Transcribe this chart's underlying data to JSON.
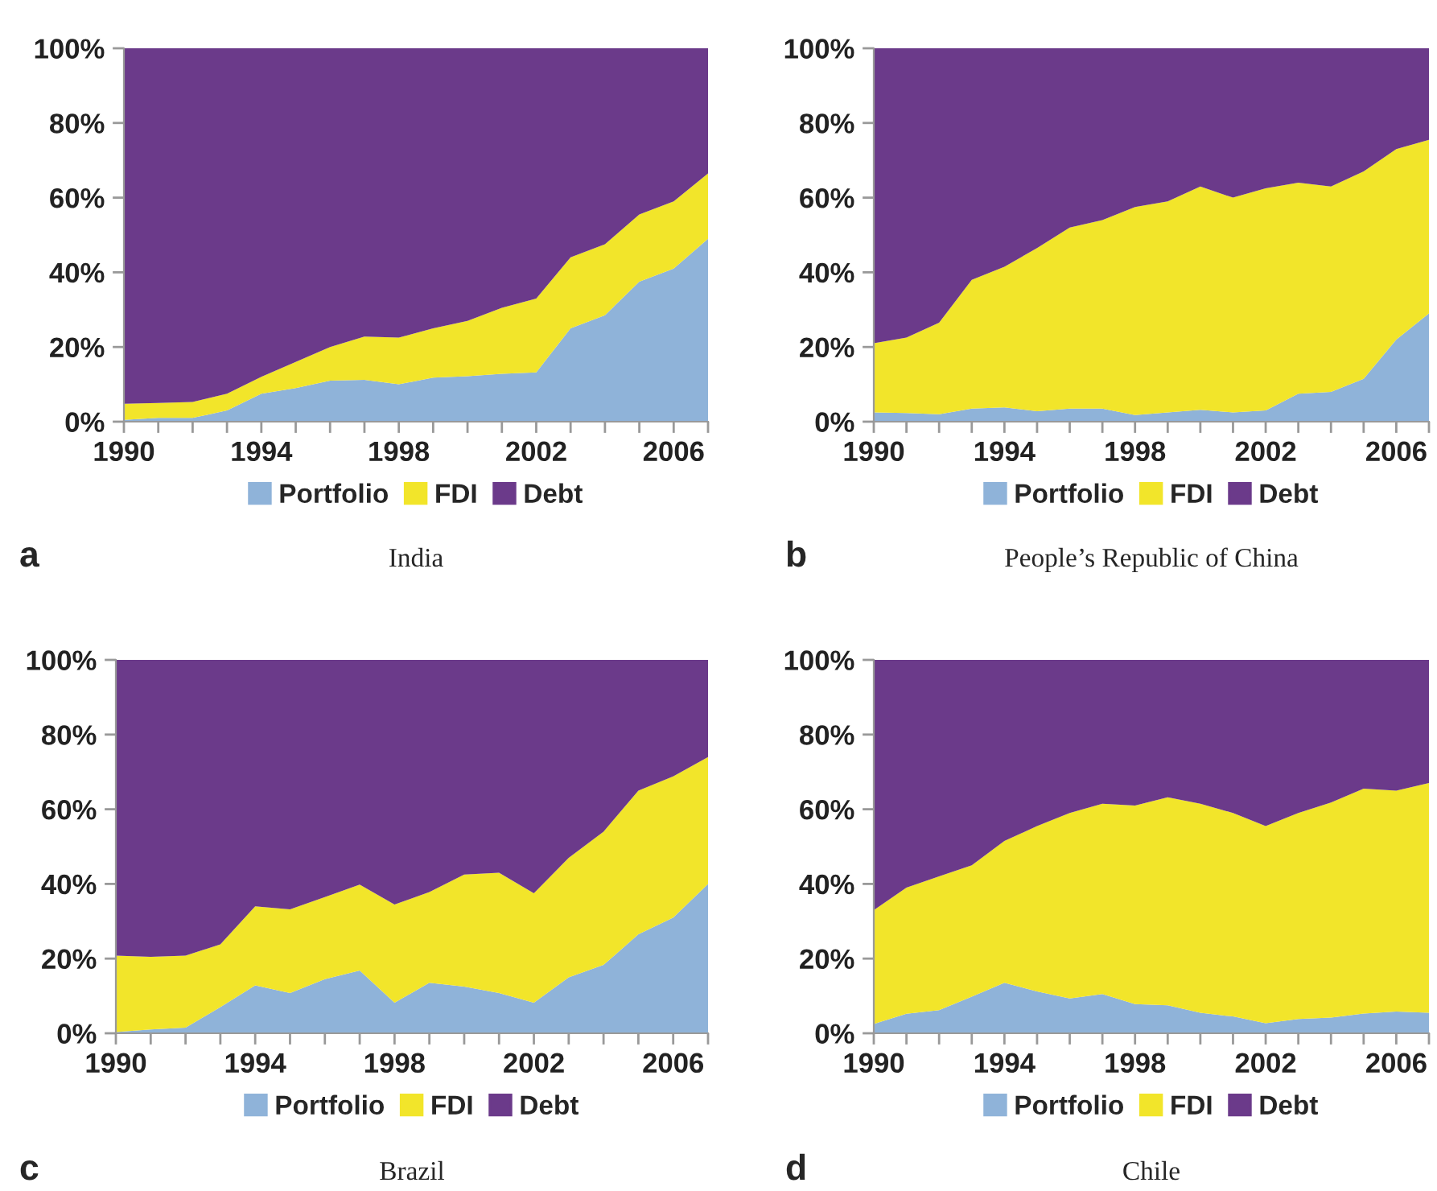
{
  "chart_data": [
    {
      "type": "area",
      "stacked": true,
      "title": "India",
      "annotations": [
        "a"
      ],
      "x": [
        1990,
        1991,
        1992,
        1993,
        1994,
        1995,
        1996,
        1997,
        1998,
        1999,
        2000,
        2001,
        2002,
        2003,
        2004,
        2005,
        2006,
        2007
      ],
      "xlim": [
        1990,
        2007
      ],
      "xticks": [
        1990,
        {
          "value": 1991,
          "label": null
        },
        {
          "value": 1992,
          "label": null
        },
        {
          "value": 1993,
          "label": null
        },
        1994,
        {
          "value": 1995,
          "label": null
        },
        {
          "value": 1996,
          "label": null
        },
        {
          "value": 1997,
          "label": null
        },
        1998,
        {
          "value": 1999,
          "label": null
        },
        {
          "value": 2000,
          "label": null
        },
        {
          "value": 2001,
          "label": null
        },
        2002,
        {
          "value": 2003,
          "label": null
        },
        {
          "value": 2004,
          "label": null
        },
        {
          "value": 2005,
          "label": null
        },
        2006,
        {
          "value": 2007,
          "label": null
        }
      ],
      "ylim": [
        0,
        100
      ],
      "yticks": [
        {
          "value": 0,
          "label": "0%"
        },
        {
          "value": 20,
          "label": "20%"
        },
        {
          "value": 40,
          "label": "40%"
        },
        {
          "value": 60,
          "label": "60%"
        },
        {
          "value": 80,
          "label": "80%"
        },
        {
          "value": 100,
          "label": "100%"
        }
      ],
      "legend": "bottom",
      "grid": false,
      "series": [
        {
          "name": "Portfolio",
          "color": "#8fb3d9",
          "values": [
            0.5,
            1,
            1,
            3,
            7.5,
            9,
            11,
            11.2,
            10,
            11.8,
            12.2,
            12.8,
            13.2,
            25,
            28.5,
            37.5,
            41,
            49
          ]
        },
        {
          "name": "FDI",
          "color": "#f2e52a",
          "values": [
            4.3,
            4,
            4.3,
            4.5,
            4.5,
            7,
            9,
            11.6,
            12.5,
            13.2,
            14.8,
            17.7,
            19.8,
            19,
            19,
            18,
            18,
            17.5
          ]
        },
        {
          "name": "Debt",
          "color": "#6b3a8a",
          "values": [
            95.2,
            95,
            94.7,
            92.5,
            88,
            84,
            80,
            77.2,
            77.5,
            75,
            73,
            69.5,
            67,
            56,
            52.5,
            44.5,
            41,
            33.5
          ]
        }
      ]
    },
    {
      "type": "area",
      "stacked": true,
      "title": "People’s Republic of China",
      "annotations": [
        "b"
      ],
      "x": [
        1990,
        1991,
        1992,
        1993,
        1994,
        1995,
        1996,
        1997,
        1998,
        1999,
        2000,
        2001,
        2002,
        2003,
        2004,
        2005,
        2006,
        2007
      ],
      "xlim": [
        1990,
        2007
      ],
      "xticks": [
        1990,
        {
          "value": 1991,
          "label": null
        },
        {
          "value": 1992,
          "label": null
        },
        {
          "value": 1993,
          "label": null
        },
        1994,
        {
          "value": 1995,
          "label": null
        },
        {
          "value": 1996,
          "label": null
        },
        {
          "value": 1997,
          "label": null
        },
        1998,
        {
          "value": 1999,
          "label": null
        },
        {
          "value": 2000,
          "label": null
        },
        {
          "value": 2001,
          "label": null
        },
        2002,
        {
          "value": 2003,
          "label": null
        },
        {
          "value": 2004,
          "label": null
        },
        {
          "value": 2005,
          "label": null
        },
        2006,
        {
          "value": 2007,
          "label": null
        }
      ],
      "ylim": [
        0,
        100
      ],
      "yticks": [
        {
          "value": 0,
          "label": "0%"
        },
        {
          "value": 20,
          "label": "20%"
        },
        {
          "value": 40,
          "label": "40%"
        },
        {
          "value": 60,
          "label": "60%"
        },
        {
          "value": 80,
          "label": "80%"
        },
        {
          "value": 100,
          "label": "100%"
        }
      ],
      "legend": "bottom",
      "grid": false,
      "series": [
        {
          "name": "Portfolio",
          "color": "#8fb3d9",
          "values": [
            2.5,
            2.3,
            2,
            3.5,
            3.8,
            2.8,
            3.5,
            3.5,
            1.8,
            2.5,
            3.2,
            2.5,
            3,
            7.5,
            8,
            11.5,
            22,
            29
          ]
        },
        {
          "name": "FDI",
          "color": "#f2e52a",
          "values": [
            18.5,
            20.2,
            24.5,
            34.5,
            37.7,
            43.7,
            48.5,
            50.5,
            55.7,
            56.5,
            59.8,
            57.5,
            59.5,
            56.5,
            55,
            55.5,
            51,
            46.5
          ]
        },
        {
          "name": "Debt",
          "color": "#6b3a8a",
          "values": [
            79,
            77.5,
            73.5,
            62,
            58.5,
            53.5,
            48,
            46,
            42.5,
            41,
            37,
            40,
            37.5,
            36,
            37,
            33,
            27,
            24.5
          ]
        }
      ]
    },
    {
      "type": "area",
      "stacked": true,
      "title": "Brazil",
      "annotations": [
        "c"
      ],
      "x": [
        1990,
        1991,
        1992,
        1993,
        1994,
        1995,
        1996,
        1997,
        1998,
        1999,
        2000,
        2001,
        2002,
        2003,
        2004,
        2005,
        2006,
        2007
      ],
      "xlim": [
        1990,
        2007
      ],
      "xticks": [
        1990,
        {
          "value": 1991,
          "label": null
        },
        {
          "value": 1992,
          "label": null
        },
        {
          "value": 1993,
          "label": null
        },
        1994,
        {
          "value": 1995,
          "label": null
        },
        {
          "value": 1996,
          "label": null
        },
        {
          "value": 1997,
          "label": null
        },
        1998,
        {
          "value": 1999,
          "label": null
        },
        {
          "value": 2000,
          "label": null
        },
        {
          "value": 2001,
          "label": null
        },
        2002,
        {
          "value": 2003,
          "label": null
        },
        {
          "value": 2004,
          "label": null
        },
        {
          "value": 2005,
          "label": null
        },
        2006,
        {
          "value": 2007,
          "label": null
        }
      ],
      "ylim": [
        0,
        100
      ],
      "yticks": [
        {
          "value": 0,
          "label": "0%"
        },
        {
          "value": 20,
          "label": "20%"
        },
        {
          "value": 40,
          "label": "40%"
        },
        {
          "value": 60,
          "label": "60%"
        },
        {
          "value": 80,
          "label": "80%"
        },
        {
          "value": 100,
          "label": "100%"
        }
      ],
      "legend": "bottom",
      "grid": false,
      "series": [
        {
          "name": "Portfolio",
          "color": "#8fb3d9",
          "values": [
            0.3,
            1,
            1.5,
            7,
            12.8,
            10.8,
            14.5,
            16.8,
            8.2,
            13.5,
            12.5,
            10.8,
            8.2,
            15,
            18.3,
            26.5,
            31,
            40
          ]
        },
        {
          "name": "FDI",
          "color": "#f2e52a",
          "values": [
            20.5,
            19.5,
            19.3,
            16.8,
            21.2,
            22.4,
            22,
            23,
            26.3,
            24.3,
            30,
            32.2,
            29.3,
            32,
            35.7,
            38.5,
            37.8,
            34
          ]
        },
        {
          "name": "Debt",
          "color": "#6b3a8a",
          "values": [
            79.2,
            79.5,
            79.2,
            76.2,
            66,
            66.8,
            63.5,
            60.2,
            65.5,
            62.2,
            57.5,
            57,
            62.5,
            53,
            46,
            35,
            31.2,
            26
          ]
        }
      ]
    },
    {
      "type": "area",
      "stacked": true,
      "title": "Chile",
      "annotations": [
        "d"
      ],
      "x": [
        1990,
        1991,
        1992,
        1993,
        1994,
        1995,
        1996,
        1997,
        1998,
        1999,
        2000,
        2001,
        2002,
        2003,
        2004,
        2005,
        2006,
        2007
      ],
      "xlim": [
        1990,
        2007
      ],
      "xticks": [
        1990,
        {
          "value": 1991,
          "label": null
        },
        {
          "value": 1992,
          "label": null
        },
        {
          "value": 1993,
          "label": null
        },
        1994,
        {
          "value": 1995,
          "label": null
        },
        {
          "value": 1996,
          "label": null
        },
        {
          "value": 1997,
          "label": null
        },
        1998,
        {
          "value": 1999,
          "label": null
        },
        {
          "value": 2000,
          "label": null
        },
        {
          "value": 2001,
          "label": null
        },
        2002,
        {
          "value": 2003,
          "label": null
        },
        {
          "value": 2004,
          "label": null
        },
        {
          "value": 2005,
          "label": null
        },
        2006,
        {
          "value": 2007,
          "label": null
        }
      ],
      "ylim": [
        0,
        100
      ],
      "yticks": [
        {
          "value": 0,
          "label": "0%"
        },
        {
          "value": 20,
          "label": "20%"
        },
        {
          "value": 40,
          "label": "40%"
        },
        {
          "value": 60,
          "label": "60%"
        },
        {
          "value": 80,
          "label": "80%"
        },
        {
          "value": 100,
          "label": "100%"
        }
      ],
      "legend": "bottom",
      "grid": false,
      "series": [
        {
          "name": "Portfolio",
          "color": "#8fb3d9",
          "values": [
            2.5,
            5.2,
            6.2,
            9.8,
            13.5,
            11.2,
            9.3,
            10.5,
            7.8,
            7.5,
            5.5,
            4.5,
            2.7,
            3.8,
            4.2,
            5.3,
            5.8,
            5.5
          ]
        },
        {
          "name": "FDI",
          "color": "#f2e52a",
          "values": [
            30.5,
            33.8,
            35.8,
            35.2,
            38,
            44.3,
            49.7,
            51,
            53.2,
            55.7,
            56,
            54.5,
            52.8,
            55.2,
            57.6,
            60.2,
            59.2,
            61.5
          ]
        },
        {
          "name": "Debt",
          "color": "#6b3a8a",
          "values": [
            67,
            61,
            58,
            55,
            48.5,
            44.5,
            41,
            38.5,
            39,
            36.8,
            38.5,
            41,
            44.5,
            41,
            38.2,
            34.5,
            35,
            33
          ]
        }
      ]
    }
  ]
}
